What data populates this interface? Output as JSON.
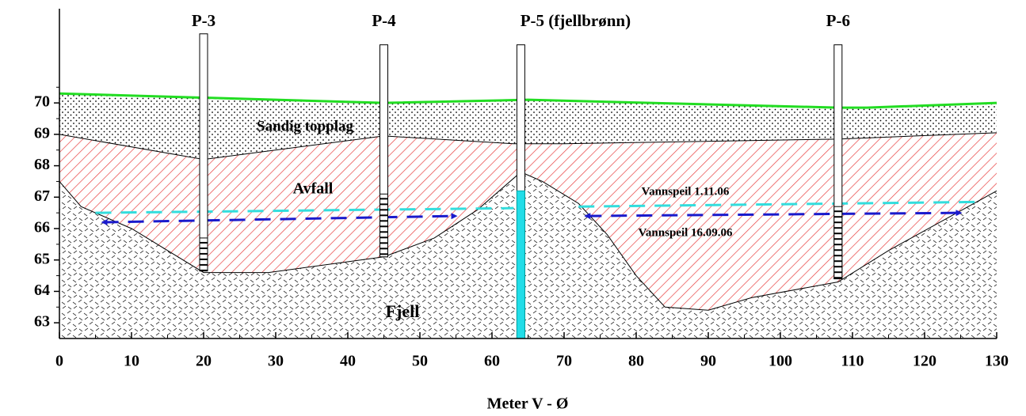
{
  "chart_data": {
    "type": "cross-section",
    "x_label": "Meter V - Ø",
    "xlim": [
      0,
      130
    ],
    "xticks": [
      0,
      10,
      20,
      30,
      40,
      50,
      60,
      70,
      80,
      90,
      100,
      110,
      120,
      130
    ],
    "ylim": [
      62.5,
      73
    ],
    "yticks": [
      63,
      64,
      65,
      66,
      67,
      68,
      69,
      70
    ],
    "ground_surface": {
      "color": "#22dd22",
      "x": [
        0,
        45,
        65,
        108,
        112,
        130
      ],
      "values": [
        70.3,
        70.0,
        70.1,
        69.85,
        69.85,
        70.0
      ]
    },
    "fill_top": {
      "color": "#000000",
      "x": [
        0,
        20,
        45,
        63,
        70,
        108,
        130
      ],
      "values": [
        69.0,
        68.2,
        68.95,
        68.7,
        68.7,
        68.85,
        69.05
      ]
    },
    "bedrock_top": {
      "color": "#000000",
      "x": [
        0,
        3,
        10,
        20,
        29,
        45,
        52,
        58,
        64,
        67,
        72,
        76,
        80,
        84,
        90,
        96,
        108,
        115,
        130
      ],
      "values": [
        67.5,
        66.7,
        66.0,
        64.6,
        64.6,
        65.1,
        65.7,
        66.6,
        67.8,
        67.5,
        66.8,
        65.8,
        64.5,
        63.5,
        63.4,
        63.8,
        64.3,
        65.3,
        67.2
      ]
    },
    "series": [
      {
        "name": "Vannspeil 1.11.06",
        "color": "#33dddd",
        "x": [
          5,
          63,
          67,
          72,
          128
        ],
        "values": [
          66.5,
          66.65,
          null,
          66.7,
          66.85
        ]
      },
      {
        "name": "Vannspeil 16.09.06",
        "color": "#1a1acc",
        "x": [
          6,
          55,
          64,
          73,
          125
        ],
        "values": [
          66.2,
          66.4,
          null,
          66.4,
          66.5
        ]
      }
    ],
    "layers": [
      "Sandig topplag",
      "Avfall",
      "Fjell"
    ],
    "wells": [
      {
        "name": "P-3",
        "x": 20,
        "top": 72.2,
        "bottom": 64.65,
        "screen_top": 65.7,
        "screen_bottom": 64.65
      },
      {
        "name": "P-4",
        "x": 45,
        "top": 71.85,
        "bottom": 65.1,
        "screen_top": 67.1,
        "screen_bottom": 65.1
      },
      {
        "name": "P-5 (fjellbrønn)",
        "x": 64,
        "top": 71.85,
        "bottom": 62.5,
        "water_top": 67.2
      },
      {
        "name": "P-6",
        "x": 108,
        "top": 71.85,
        "bottom": 64.4,
        "screen_top": 66.7,
        "screen_bottom": 64.4
      }
    ]
  }
}
